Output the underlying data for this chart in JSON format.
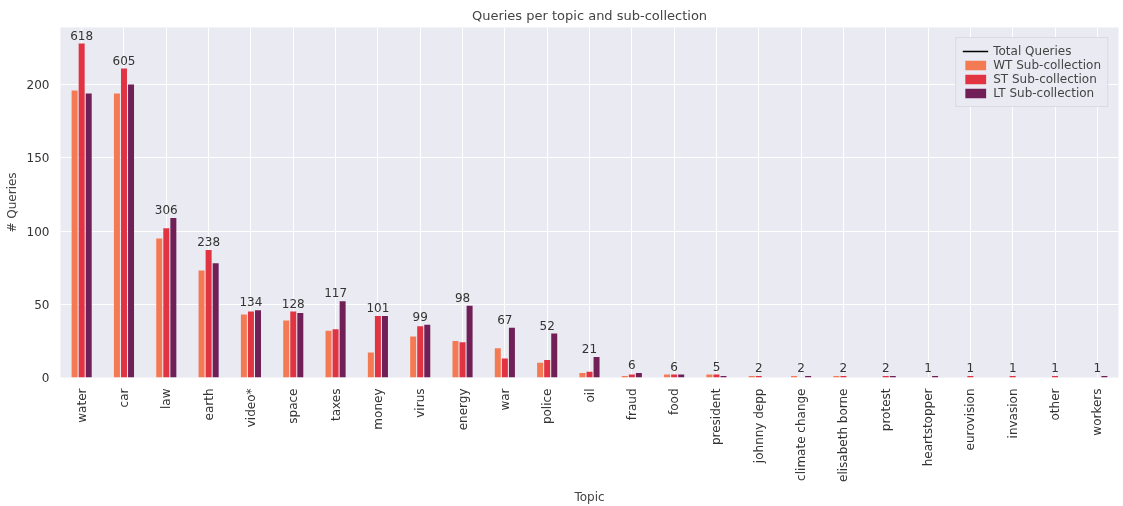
{
  "chart_data": {
    "type": "bar",
    "title": "Queries per topic and sub-collection",
    "xlabel": "Topic",
    "ylabel": "# Queries",
    "categories": [
      "water",
      "car",
      "law",
      "earth",
      "video*",
      "space",
      "taxes",
      "money",
      "virus",
      "energy",
      "war",
      "police",
      "oil",
      "fraud",
      "food",
      "president",
      "johnny depp",
      "climate change",
      "elisabeth borne",
      "protest",
      "heartstopper",
      "eurovision",
      "invasion",
      "other",
      "workers"
    ],
    "series": [
      {
        "name": "Total Queries",
        "type": "line",
        "color": "#000000",
        "values": [
          null,
          null,
          null,
          null,
          null,
          null,
          null,
          null,
          null,
          null,
          null,
          null,
          null,
          null,
          null,
          null,
          null,
          null,
          null,
          null,
          null,
          null,
          null,
          null,
          null
        ]
      },
      {
        "name": "WT Sub-collection",
        "color": "#f47a54",
        "values": [
          196,
          194,
          95,
          73,
          43,
          39,
          32,
          17,
          28,
          25,
          20,
          10,
          3,
          1,
          2,
          2,
          1,
          1,
          1,
          0,
          0,
          0,
          0,
          0,
          0
        ]
      },
      {
        "name": "ST Sub-collection",
        "color": "#e13342",
        "values": [
          228,
          211,
          102,
          87,
          45,
          45,
          33,
          42,
          35,
          24,
          13,
          12,
          4,
          2,
          2,
          2,
          1,
          0,
          1,
          1,
          0,
          1,
          1,
          1,
          0
        ]
      },
      {
        "name": "LT Sub-collection",
        "color": "#701f57",
        "values": [
          194,
          200,
          109,
          78,
          46,
          44,
          52,
          42,
          36,
          49,
          34,
          30,
          14,
          3,
          2,
          1,
          0,
          1,
          0,
          1,
          1,
          0,
          0,
          0,
          1
        ]
      }
    ],
    "totals": [
      "618",
      "605",
      "306",
      "238",
      "134",
      "128",
      "117",
      "101",
      "99",
      "98",
      "67",
      "52",
      "21",
      "6",
      "6",
      "5",
      "2",
      "2",
      "2",
      "2",
      "1",
      "1",
      "1",
      "1",
      "1"
    ],
    "ylim": [
      0,
      239
    ],
    "yticks": [
      0,
      50,
      100,
      150,
      200
    ],
    "grid": true,
    "legend": "top right"
  }
}
